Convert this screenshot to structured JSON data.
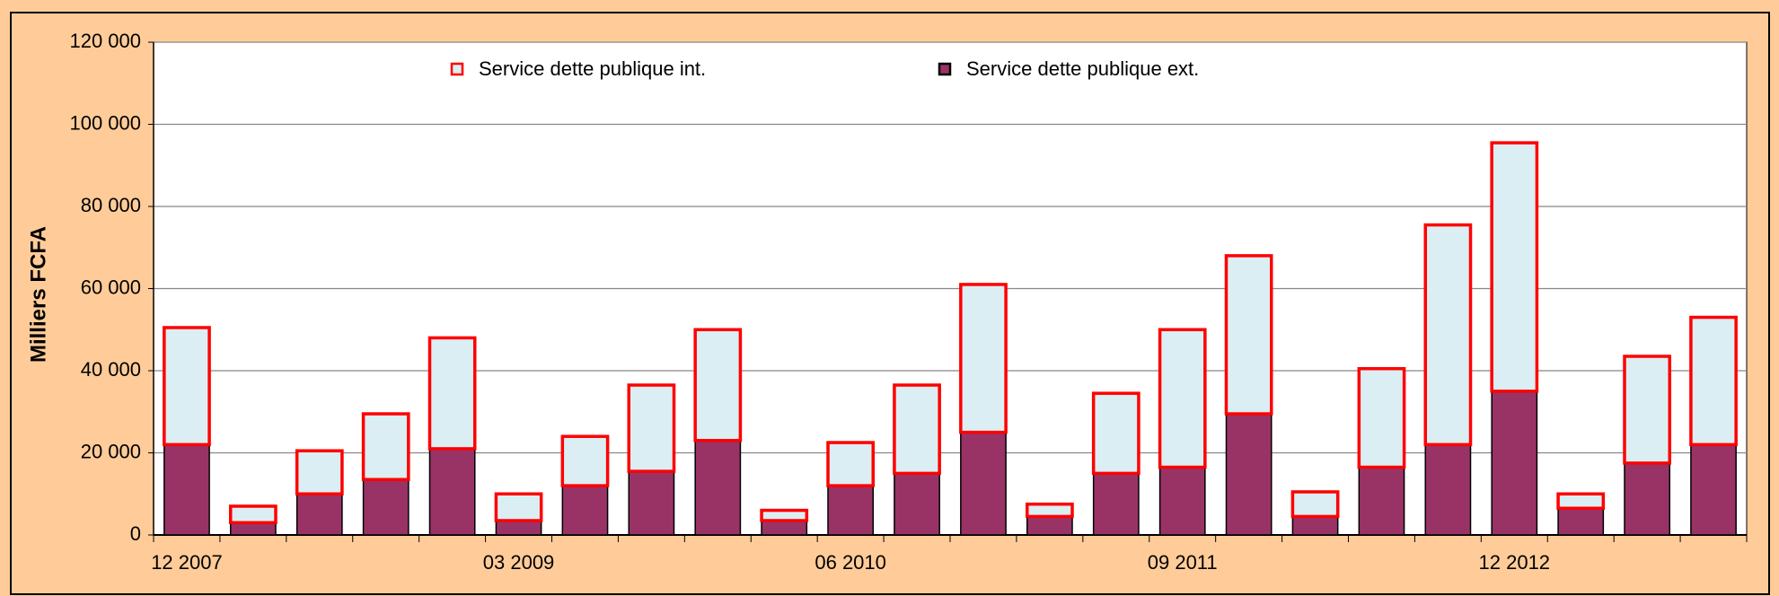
{
  "chart_data": {
    "type": "stacked-bar",
    "y_label": "Milliers FCFA",
    "categories": [
      "12 2007",
      null,
      null,
      null,
      null,
      "03 2009",
      null,
      null,
      null,
      null,
      "06 2010",
      null,
      null,
      null,
      null,
      "09 2011",
      null,
      null,
      null,
      null,
      "12 2012",
      null,
      null,
      null
    ],
    "series": [
      {
        "name": "Service dette publique int.",
        "color": "#daeef3",
        "edge": "#ff0000",
        "values": [
          28500,
          4000,
          10500,
          16000,
          27000,
          6500,
          12000,
          21000,
          27000,
          2500,
          10500,
          21500,
          36000,
          3000,
          19500,
          33500,
          38500,
          6000,
          24000,
          53500,
          60500,
          3500,
          26000,
          31000
        ]
      },
      {
        "name": "Service dette publique ext.",
        "color": "#993366",
        "edge": "#000000",
        "values": [
          22000,
          3000,
          10000,
          13500,
          21000,
          3500,
          12000,
          15500,
          23000,
          3500,
          12000,
          15000,
          25000,
          4500,
          15000,
          16500,
          29500,
          4500,
          16500,
          22000,
          35000,
          6500,
          17500,
          22000
        ]
      }
    ],
    "ylim": [
      0,
      120000
    ],
    "yticks": [
      0,
      {
        "value": 20000,
        "label": "20 000"
      },
      {
        "value": 40000,
        "label": "40 000"
      },
      {
        "value": 60000,
        "label": "60 000"
      },
      {
        "value": 80000,
        "label": "80 000"
      },
      {
        "value": 100000,
        "label": "100 000"
      },
      {
        "value": 120000,
        "label": "120 000"
      }
    ],
    "grid": true
  }
}
